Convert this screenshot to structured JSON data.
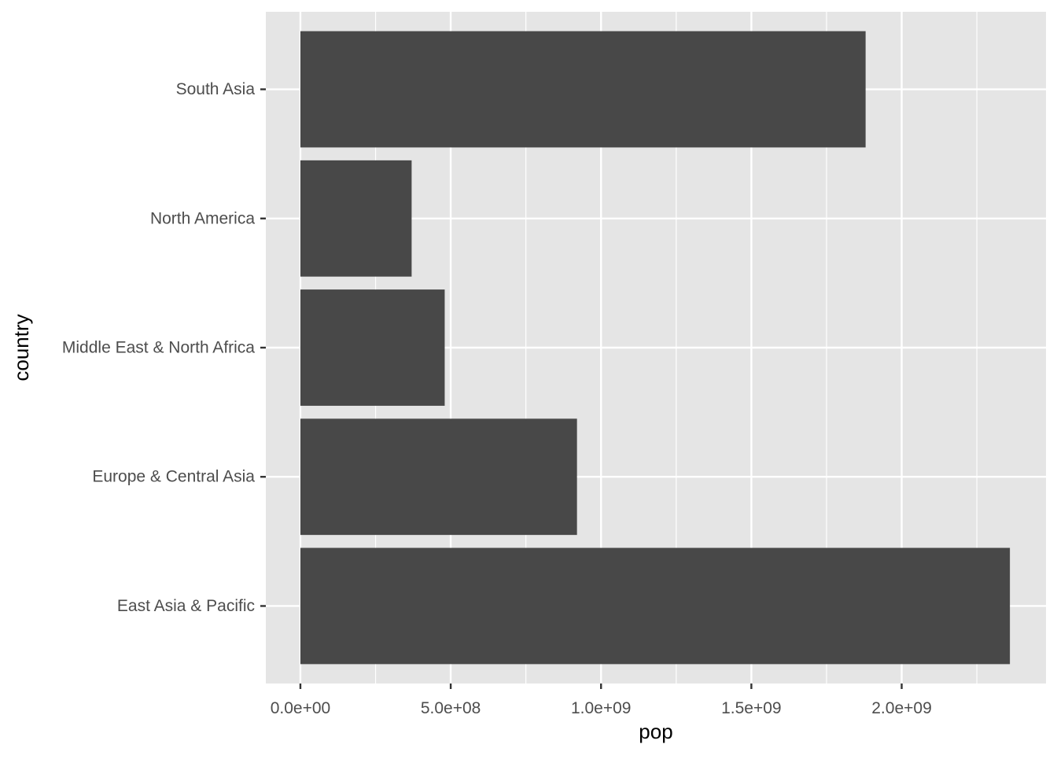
{
  "chart_data": {
    "type": "bar",
    "orientation": "horizontal",
    "title": "",
    "xlabel": "pop",
    "ylabel": "country",
    "categories": [
      "East Asia & Pacific",
      "Europe & Central Asia",
      "Middle East & North Africa",
      "North America",
      "South Asia"
    ],
    "values": [
      2360000000,
      920000000,
      480000000,
      370000000,
      1880000000
    ],
    "xlim": [
      -115000000,
      2480000000
    ],
    "x_ticks": [
      {
        "value": 0,
        "label": "0.0e+00"
      },
      {
        "value": 500000000,
        "label": "5.0e+08"
      },
      {
        "value": 1000000000,
        "label": "1.0e+09"
      },
      {
        "value": 1500000000,
        "label": "1.5e+09"
      },
      {
        "value": 2000000000,
        "label": "2.0e+09"
      }
    ],
    "x_minor_ticks": [
      250000000,
      750000000,
      1250000000,
      1750000000,
      2250000000
    ],
    "grid": true,
    "legend": "none",
    "colors": {
      "panel_background": "#e5e5e5",
      "grid_line": "#ffffff",
      "bar_fill": "#484848",
      "tick_text": "#4d4d4d",
      "axis_title": "#000000",
      "tick_mark": "#333333"
    }
  }
}
